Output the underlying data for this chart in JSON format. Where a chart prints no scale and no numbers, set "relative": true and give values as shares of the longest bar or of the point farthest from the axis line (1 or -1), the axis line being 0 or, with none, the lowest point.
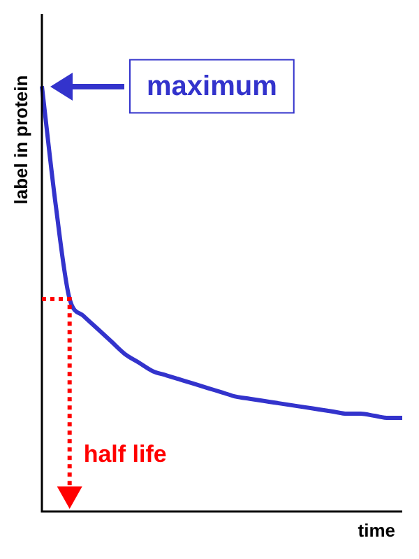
{
  "chart_data": {
    "type": "line",
    "relative": true,
    "xlabel": "time",
    "ylabel": "label in protein",
    "color": "#3333cc",
    "marker": "none",
    "legend": false,
    "categories": [
      null,
      null,
      null,
      null,
      null,
      null,
      null,
      null,
      null,
      null,
      null,
      null,
      null,
      null,
      null,
      null,
      null,
      null,
      null,
      null,
      null,
      null,
      null,
      null,
      null,
      null,
      null
    ],
    "values": [
      1.0,
      0.72,
      0.5,
      0.46,
      0.43,
      0.4,
      0.37,
      0.35,
      0.33,
      0.32,
      0.31,
      0.3,
      0.29,
      0.28,
      0.27,
      0.265,
      0.26,
      0.255,
      0.25,
      0.245,
      0.24,
      0.235,
      0.23,
      0.23,
      0.225,
      0.22,
      0.22
    ],
    "annotations": [
      "maximum",
      "half life"
    ]
  }
}
